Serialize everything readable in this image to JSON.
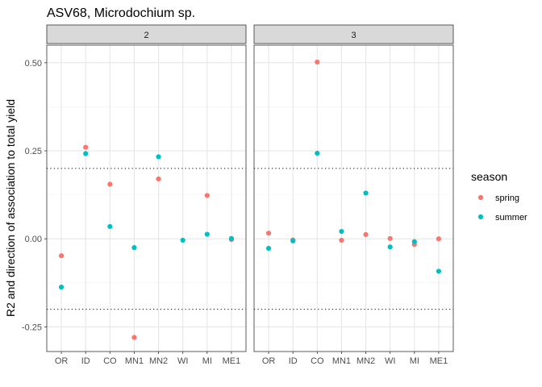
{
  "chart_data": {
    "type": "scatter",
    "title": "ASV68, Microdochium sp.",
    "xlabel": "",
    "ylabel": "R2 and direction of association to total yield",
    "categories": [
      "OR",
      "ID",
      "CO",
      "MN1",
      "MN2",
      "WI",
      "MI",
      "ME1"
    ],
    "ylim": [
      -0.32,
      0.55
    ],
    "yticks": [
      -0.25,
      0.0,
      0.25,
      0.5
    ],
    "ytick_labels": [
      "-0.25",
      "0.00",
      "0.25",
      "0.50"
    ],
    "reference_lines": [
      -0.2,
      0.2
    ],
    "grid": true,
    "legend_title": "season",
    "legend_position": "right",
    "colors": {
      "spring": "#F8766D",
      "summer": "#00BFC4"
    },
    "panels": [
      {
        "label": "2",
        "series": [
          {
            "name": "spring",
            "points": [
              {
                "x": "OR",
                "y": -0.048
              },
              {
                "x": "ID",
                "y": 0.26
              },
              {
                "x": "CO",
                "y": 0.155
              },
              {
                "x": "MN1",
                "y": -0.28
              },
              {
                "x": "MN2",
                "y": 0.17
              },
              {
                "x": "MI",
                "y": 0.123
              },
              {
                "x": "ME1",
                "y": -0.002
              }
            ]
          },
          {
            "name": "summer",
            "points": [
              {
                "x": "OR",
                "y": -0.137
              },
              {
                "x": "ID",
                "y": 0.242
              },
              {
                "x": "CO",
                "y": 0.035
              },
              {
                "x": "MN1",
                "y": -0.025
              },
              {
                "x": "MN2",
                "y": 0.233
              },
              {
                "x": "WI",
                "y": -0.004
              },
              {
                "x": "MI",
                "y": 0.013
              },
              {
                "x": "ME1",
                "y": 0.001
              }
            ]
          }
        ]
      },
      {
        "label": "3",
        "series": [
          {
            "name": "spring",
            "points": [
              {
                "x": "OR",
                "y": 0.016
              },
              {
                "x": "ID",
                "y": -0.003
              },
              {
                "x": "CO",
                "y": 0.502
              },
              {
                "x": "MN1",
                "y": -0.004
              },
              {
                "x": "MN2",
                "y": 0.012
              },
              {
                "x": "WI",
                "y": 0.001
              },
              {
                "x": "MI",
                "y": -0.016
              },
              {
                "x": "ME1",
                "y": 0.0
              }
            ]
          },
          {
            "name": "summer",
            "points": [
              {
                "x": "OR",
                "y": -0.027
              },
              {
                "x": "ID",
                "y": -0.006
              },
              {
                "x": "CO",
                "y": 0.243
              },
              {
                "x": "MN1",
                "y": 0.021
              },
              {
                "x": "MN2",
                "y": 0.13
              },
              {
                "x": "WI",
                "y": -0.023
              },
              {
                "x": "MI",
                "y": -0.008
              },
              {
                "x": "ME1",
                "y": -0.092
              }
            ]
          }
        ]
      }
    ]
  }
}
